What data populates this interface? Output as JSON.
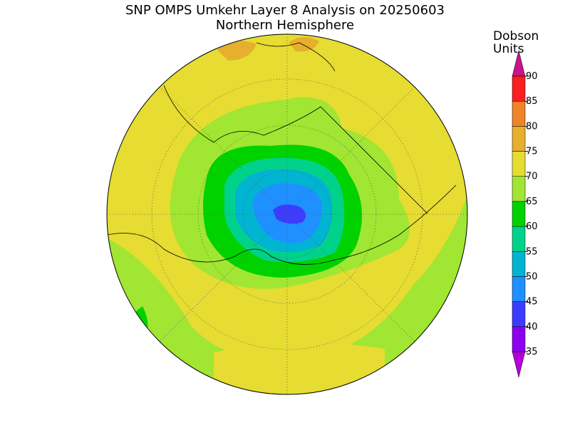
{
  "header": {
    "title": "SNP OMPS Umkehr Layer 8 Analysis on 20250603",
    "subtitle": "Northern Hemisphere"
  },
  "colorbar": {
    "title": [
      "Dobson",
      "Units"
    ],
    "ticks": [
      35,
      40,
      45,
      50,
      55,
      60,
      65,
      70,
      75,
      80,
      85,
      90
    ],
    "colors": [
      "#b400dc",
      "#8c00f0",
      "#3c3cff",
      "#1e90ff",
      "#00b4d2",
      "#00d28c",
      "#00d200",
      "#a0e632",
      "#e6dc32",
      "#e6af2d",
      "#f08228",
      "#fa1e1e",
      "#c8148c"
    ]
  }
}
